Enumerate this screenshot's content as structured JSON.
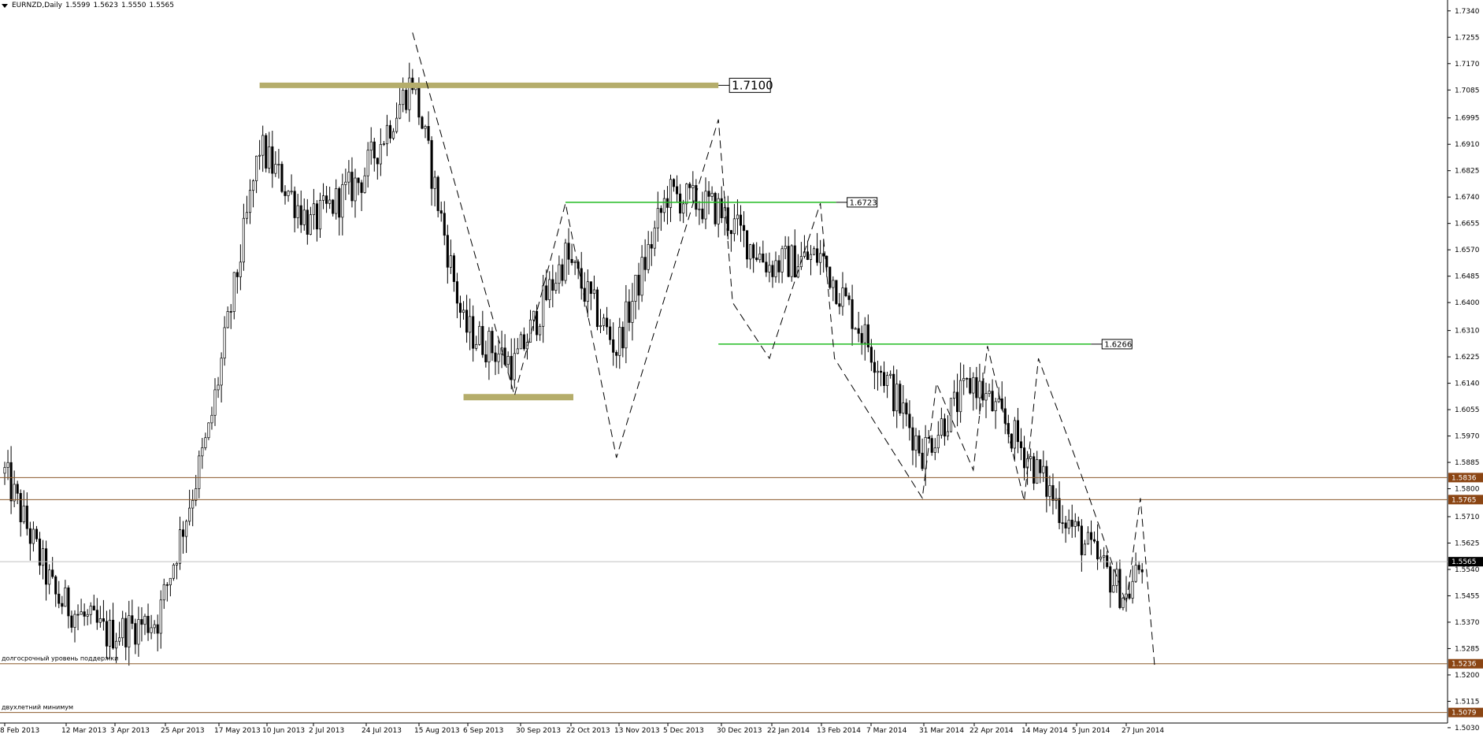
{
  "header": {
    "symbol": "EURNZD,Daily",
    "open": "1.5599",
    "high": "1.5623",
    "low": "1.5550",
    "close": "1.5565"
  },
  "chart_data": {
    "type": "candlestick",
    "y_axis": {
      "min": 1.5045,
      "max": 1.7375,
      "ticks": [
        "1.7340",
        "1.7255",
        "1.7170",
        "1.7085",
        "1.6995",
        "1.6910",
        "1.6825",
        "1.6740",
        "1.6655",
        "1.6570",
        "1.6485",
        "1.6400",
        "1.6310",
        "1.6225",
        "1.6140",
        "1.6055",
        "1.5970",
        "1.5885",
        "1.5800",
        "1.5710",
        "1.5625",
        "1.5540",
        "1.5455",
        "1.5370",
        "1.5285",
        "1.5200",
        "1.5115",
        "1.5030"
      ]
    },
    "x_axis": {
      "labels": [
        "8 Feb 2013",
        "12 Mar 2013",
        "3 Apr 2013",
        "25 Apr 2013",
        "17 May 2013",
        "10 Jun 2013",
        "2 Jul 2013",
        "24 Jul 2013",
        "15 Aug 2013",
        "6 Sep 2013",
        "30 Sep 2013",
        "22 Oct 2013",
        "13 Nov 2013",
        "5 Dec 2013",
        "30 Dec 2013",
        "22 Jan 2014",
        "13 Feb 2014",
        "7 Mar 2014",
        "31 Mar 2014",
        "22 Apr 2014",
        "14 May 2014",
        "5 Jun 2014",
        "27 Jun 2014"
      ]
    },
    "current_price": "1.5565",
    "price_anchors": [
      {
        "date": "8 Feb 2013",
        "close": 1.585
      },
      {
        "date": "12 Mar 2013",
        "close": 1.545
      },
      {
        "date": "3 Apr 2013",
        "close": 1.533
      },
      {
        "date": "25 Apr 2013",
        "close": 1.538
      },
      {
        "date": "17 May 2013",
        "close": 1.598
      },
      {
        "date": "10 Jun 2013",
        "close": 1.69
      },
      {
        "date": "2 Jul 2013",
        "close": 1.665
      },
      {
        "date": "24 Jul 2013",
        "close": 1.68
      },
      {
        "date": "15 Aug 2013",
        "close": 1.712
      },
      {
        "date": "6 Sep 2013",
        "close": 1.632
      },
      {
        "date": "30 Sep 2013",
        "close": 1.62
      },
      {
        "date": "22 Oct 2013",
        "close": 1.655
      },
      {
        "date": "13 Nov 2013",
        "close": 1.625
      },
      {
        "date": "5 Dec 2013",
        "close": 1.675
      },
      {
        "date": "30 Dec 2013",
        "close": 1.67
      },
      {
        "date": "22 Jan 2014",
        "close": 1.652
      },
      {
        "date": "13 Feb 2014",
        "close": 1.655
      },
      {
        "date": "7 Mar 2014",
        "close": 1.625
      },
      {
        "date": "31 Mar 2014",
        "close": 1.592
      },
      {
        "date": "22 Apr 2014",
        "close": 1.615
      },
      {
        "date": "14 May 2014",
        "close": 1.592
      },
      {
        "date": "5 Jun 2014",
        "close": 1.566
      },
      {
        "date": "27 Jun 2014",
        "close": 1.545
      },
      {
        "date": "27 Jun 2014",
        "close": 1.5565
      }
    ],
    "horizontal_levels": [
      {
        "price": 1.5836,
        "label": "1.5836",
        "style": "brown-line",
        "axis_badge": true
      },
      {
        "price": 1.5765,
        "label": "1.5765",
        "style": "brown-line",
        "axis_badge": true
      },
      {
        "price": 1.5236,
        "label": "1.5236",
        "style": "brown-line",
        "axis_badge": true,
        "note": "долгосрочный уровень поддержки"
      },
      {
        "price": 1.5079,
        "label": "1.5079",
        "style": "brown-line",
        "axis_badge": true,
        "note": "двухлетний минимум"
      }
    ],
    "resistance_lines": [
      {
        "price": 1.71,
        "label": "1.7100",
        "color": "#b5ad6b",
        "thick": true,
        "from": "10 Jun 2013",
        "to": "30 Dec 2013"
      },
      {
        "price": 1.6723,
        "label": "1.6723",
        "color": "#22bb22",
        "from": "22 Oct 2013",
        "to": "13 Feb 2014"
      },
      {
        "price": 1.6266,
        "label": "1.6266",
        "color": "#22bb22",
        "from": "30 Dec 2013",
        "to": "5 Jun 2014"
      }
    ],
    "support_zone": {
      "price": 1.6095,
      "color": "#b5ad6b",
      "from": "6 Sep 2013",
      "to": "22 Oct 2013"
    },
    "zigzag": [
      {
        "date": "15 Aug 2013",
        "price": 1.727
      },
      {
        "date": "30 Sep 2013",
        "price": 1.61
      },
      {
        "date": "22 Oct 2013",
        "price": 1.672
      },
      {
        "date": "13 Nov 2013",
        "price": 1.59
      },
      {
        "date": "30 Dec 2013",
        "price": 1.699
      },
      {
        "date": "30 Dec 2013",
        "price": 1.64
      },
      {
        "date": "22 Jan 2014",
        "price": 1.622
      },
      {
        "date": "13 Feb 2014",
        "price": 1.672
      },
      {
        "date": "13 Feb 2014",
        "price": 1.622
      },
      {
        "date": "31 Mar 2014",
        "price": 1.577
      },
      {
        "date": "31 Mar 2014",
        "price": 1.614
      },
      {
        "date": "22 Apr 2014",
        "price": 1.586
      },
      {
        "date": "22 Apr 2014",
        "price": 1.626
      },
      {
        "date": "14 May 2014",
        "price": 1.576
      },
      {
        "date": "14 May 2014",
        "price": 1.622
      },
      {
        "date": "5 Jun 2014",
        "price": 1.59
      },
      {
        "date": "27 Jun 2014",
        "price": 1.543
      },
      {
        "date": "27 Jun 2014",
        "price": 1.577
      },
      {
        "date": "27 Jun 2014",
        "price": 1.523
      }
    ],
    "colors": {
      "candle": "#000000",
      "level": "#8b5a2b",
      "badge_bg": "#8b4513",
      "green": "#22bb22",
      "olive": "#b5ad6b"
    }
  }
}
